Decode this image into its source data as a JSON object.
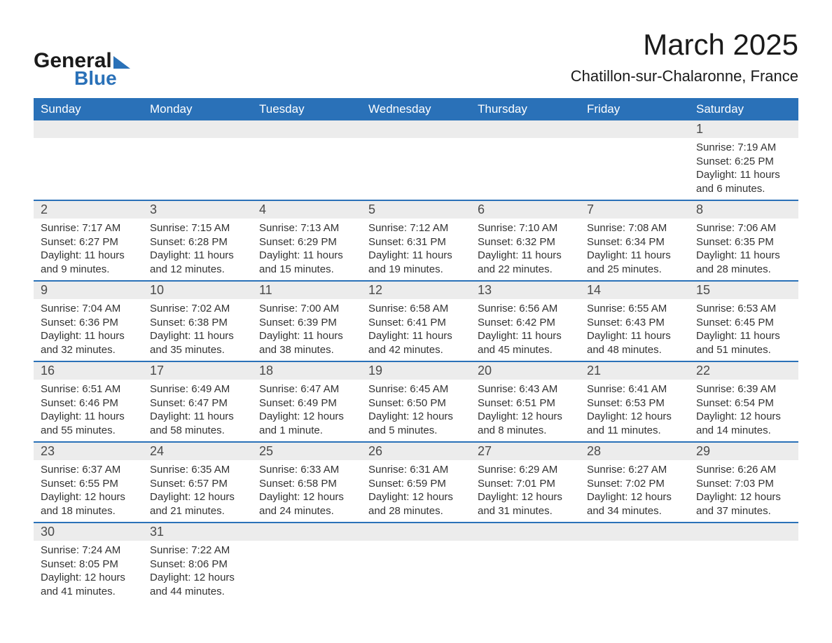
{
  "logo": {
    "text1": "General",
    "text2": "Blue",
    "accent_color": "#2a71b8"
  },
  "title": "March 2025",
  "location": "Chatillon-sur-Chalaronne, France",
  "header_bg": "#2a71b8",
  "header_fg": "#ffffff",
  "row_stripe": "#ececec",
  "border_color": "#2a71b8",
  "text_color": "#333333",
  "font_family": "Arial",
  "day_headers": [
    "Sunday",
    "Monday",
    "Tuesday",
    "Wednesday",
    "Thursday",
    "Friday",
    "Saturday"
  ],
  "weeks": [
    [
      null,
      null,
      null,
      null,
      null,
      null,
      {
        "n": "1",
        "sunrise": "7:19 AM",
        "sunset": "6:25 PM",
        "daylight": "11 hours and 6 minutes."
      }
    ],
    [
      {
        "n": "2",
        "sunrise": "7:17 AM",
        "sunset": "6:27 PM",
        "daylight": "11 hours and 9 minutes."
      },
      {
        "n": "3",
        "sunrise": "7:15 AM",
        "sunset": "6:28 PM",
        "daylight": "11 hours and 12 minutes."
      },
      {
        "n": "4",
        "sunrise": "7:13 AM",
        "sunset": "6:29 PM",
        "daylight": "11 hours and 15 minutes."
      },
      {
        "n": "5",
        "sunrise": "7:12 AM",
        "sunset": "6:31 PM",
        "daylight": "11 hours and 19 minutes."
      },
      {
        "n": "6",
        "sunrise": "7:10 AM",
        "sunset": "6:32 PM",
        "daylight": "11 hours and 22 minutes."
      },
      {
        "n": "7",
        "sunrise": "7:08 AM",
        "sunset": "6:34 PM",
        "daylight": "11 hours and 25 minutes."
      },
      {
        "n": "8",
        "sunrise": "7:06 AM",
        "sunset": "6:35 PM",
        "daylight": "11 hours and 28 minutes."
      }
    ],
    [
      {
        "n": "9",
        "sunrise": "7:04 AM",
        "sunset": "6:36 PM",
        "daylight": "11 hours and 32 minutes."
      },
      {
        "n": "10",
        "sunrise": "7:02 AM",
        "sunset": "6:38 PM",
        "daylight": "11 hours and 35 minutes."
      },
      {
        "n": "11",
        "sunrise": "7:00 AM",
        "sunset": "6:39 PM",
        "daylight": "11 hours and 38 minutes."
      },
      {
        "n": "12",
        "sunrise": "6:58 AM",
        "sunset": "6:41 PM",
        "daylight": "11 hours and 42 minutes."
      },
      {
        "n": "13",
        "sunrise": "6:56 AM",
        "sunset": "6:42 PM",
        "daylight": "11 hours and 45 minutes."
      },
      {
        "n": "14",
        "sunrise": "6:55 AM",
        "sunset": "6:43 PM",
        "daylight": "11 hours and 48 minutes."
      },
      {
        "n": "15",
        "sunrise": "6:53 AM",
        "sunset": "6:45 PM",
        "daylight": "11 hours and 51 minutes."
      }
    ],
    [
      {
        "n": "16",
        "sunrise": "6:51 AM",
        "sunset": "6:46 PM",
        "daylight": "11 hours and 55 minutes."
      },
      {
        "n": "17",
        "sunrise": "6:49 AM",
        "sunset": "6:47 PM",
        "daylight": "11 hours and 58 minutes."
      },
      {
        "n": "18",
        "sunrise": "6:47 AM",
        "sunset": "6:49 PM",
        "daylight": "12 hours and 1 minute."
      },
      {
        "n": "19",
        "sunrise": "6:45 AM",
        "sunset": "6:50 PM",
        "daylight": "12 hours and 5 minutes."
      },
      {
        "n": "20",
        "sunrise": "6:43 AM",
        "sunset": "6:51 PM",
        "daylight": "12 hours and 8 minutes."
      },
      {
        "n": "21",
        "sunrise": "6:41 AM",
        "sunset": "6:53 PM",
        "daylight": "12 hours and 11 minutes."
      },
      {
        "n": "22",
        "sunrise": "6:39 AM",
        "sunset": "6:54 PM",
        "daylight": "12 hours and 14 minutes."
      }
    ],
    [
      {
        "n": "23",
        "sunrise": "6:37 AM",
        "sunset": "6:55 PM",
        "daylight": "12 hours and 18 minutes."
      },
      {
        "n": "24",
        "sunrise": "6:35 AM",
        "sunset": "6:57 PM",
        "daylight": "12 hours and 21 minutes."
      },
      {
        "n": "25",
        "sunrise": "6:33 AM",
        "sunset": "6:58 PM",
        "daylight": "12 hours and 24 minutes."
      },
      {
        "n": "26",
        "sunrise": "6:31 AM",
        "sunset": "6:59 PM",
        "daylight": "12 hours and 28 minutes."
      },
      {
        "n": "27",
        "sunrise": "6:29 AM",
        "sunset": "7:01 PM",
        "daylight": "12 hours and 31 minutes."
      },
      {
        "n": "28",
        "sunrise": "6:27 AM",
        "sunset": "7:02 PM",
        "daylight": "12 hours and 34 minutes."
      },
      {
        "n": "29",
        "sunrise": "6:26 AM",
        "sunset": "7:03 PM",
        "daylight": "12 hours and 37 minutes."
      }
    ],
    [
      {
        "n": "30",
        "sunrise": "7:24 AM",
        "sunset": "8:05 PM",
        "daylight": "12 hours and 41 minutes."
      },
      {
        "n": "31",
        "sunrise": "7:22 AM",
        "sunset": "8:06 PM",
        "daylight": "12 hours and 44 minutes."
      },
      null,
      null,
      null,
      null,
      null
    ]
  ],
  "labels": {
    "sunrise_prefix": "Sunrise: ",
    "sunset_prefix": "Sunset: ",
    "daylight_prefix": "Daylight: "
  }
}
